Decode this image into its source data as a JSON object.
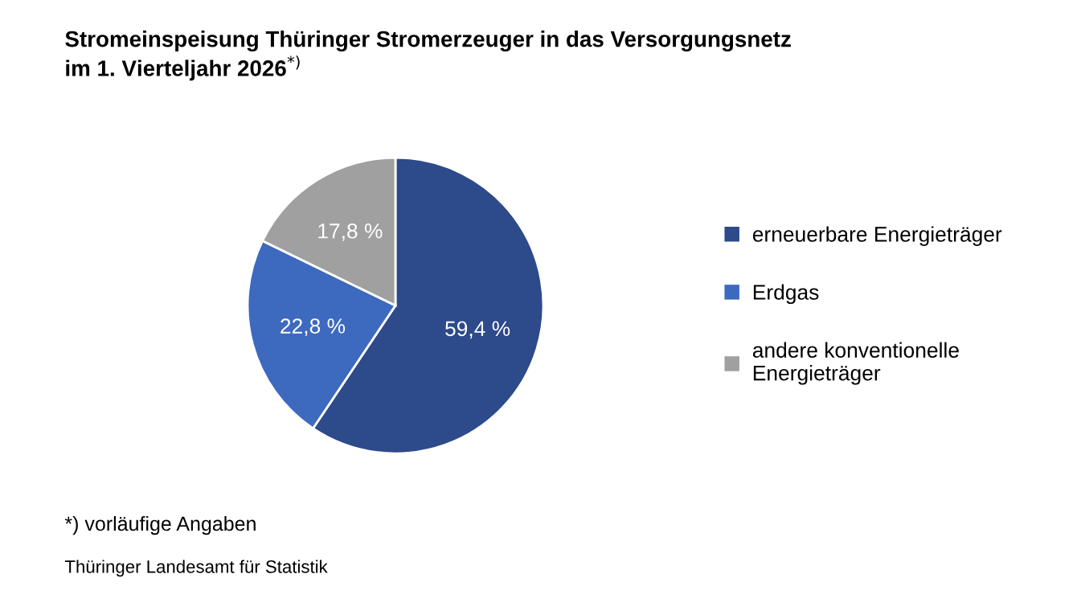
{
  "chart_data": {
    "type": "pie",
    "title": "Stromeinspeisung Thüringer Stromerzeuger in das Versorgungsnetz\nim 1. Vierteljahr 2026$^{*)}$",
    "categories": [
      "erneuerbare Energieträger",
      "Erdgas",
      "andere konventionelle\nEnergieträger"
    ],
    "values": [
      59.4,
      22.8,
      17.8
    ],
    "value_labels": [
      "59,4 %",
      "22,8 %",
      "17,8 %"
    ],
    "colors": [
      "#2d4a8a",
      "#3d69bf",
      "#a0a0a0"
    ],
    "legend": "right",
    "annotations": [
      "*) vorläufige Angaben",
      "Thüringer Landesamt für Statistik"
    ]
  }
}
